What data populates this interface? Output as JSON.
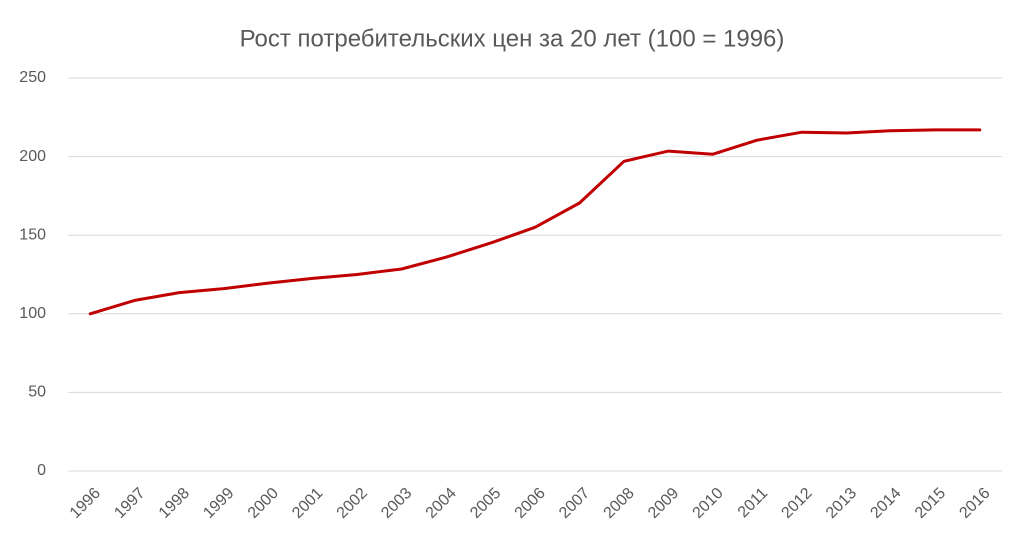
{
  "chart_data": {
    "type": "line",
    "title": "Рост потребительских цен за 20 лет (100 = 1996)",
    "categories": [
      "1996",
      "1997",
      "1998",
      "1999",
      "2000",
      "2001",
      "2002",
      "2003",
      "2004",
      "2005",
      "2006",
      "2007",
      "2008",
      "2009",
      "2010",
      "2011",
      "2012",
      "2013",
      "2014",
      "2015",
      "2016"
    ],
    "values": [
      100,
      108.5,
      113.5,
      116,
      119.5,
      122.5,
      125,
      128.5,
      136,
      145,
      155,
      170.5,
      197,
      203.5,
      201.5,
      210.5,
      215.5,
      215,
      216.5,
      217,
      217
    ],
    "color": "#c00000",
    "ylim": [
      0,
      250
    ],
    "yticks": [
      0,
      50,
      100,
      150,
      200,
      250
    ],
    "grid": true
  }
}
